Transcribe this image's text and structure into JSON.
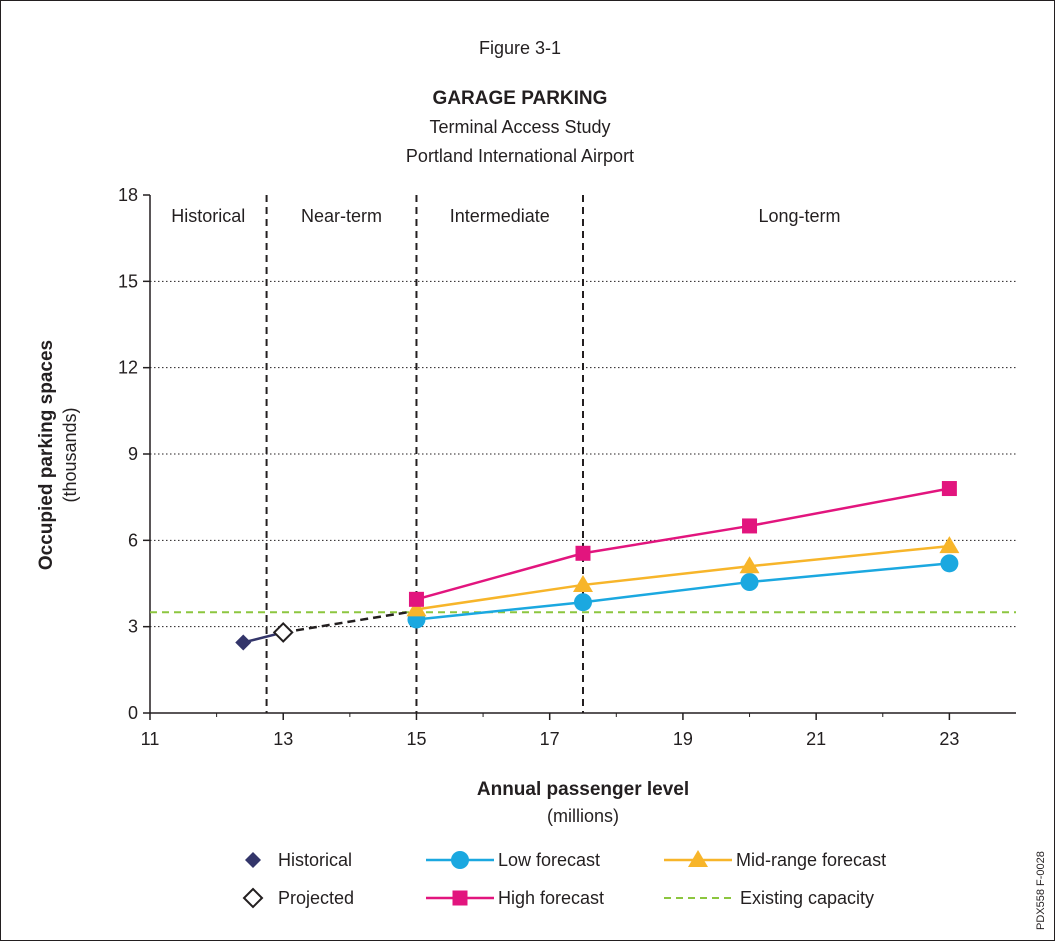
{
  "header": {
    "figure_number": "Figure 3-1",
    "title": "GARAGE PARKING",
    "subtitle_1": "Terminal Access Study",
    "subtitle_2": "Portland International Airport"
  },
  "side_code": "PDX558 F-0028",
  "colors": {
    "historical": "#33356a",
    "low": "#1ba8e0",
    "mid": "#f7b52a",
    "high": "#e2157e",
    "capacity": "#8cc63f",
    "projection": "#231f20",
    "gridline": "#231f20"
  },
  "chart_data": {
    "type": "line",
    "xlabel": "Annual passenger level",
    "xlabel_unit": "(millions)",
    "ylabel": "Occupied parking spaces",
    "ylabel_unit": "(thousands)",
    "xlim": [
      11,
      24
    ],
    "ylim": [
      0,
      18
    ],
    "x_ticks": [
      11,
      13,
      15,
      17,
      19,
      21,
      23
    ],
    "y_ticks": [
      0,
      3,
      6,
      9,
      12,
      15,
      18
    ],
    "grid": "horizontal dotted",
    "periods": [
      {
        "label": "Historical",
        "from": 11,
        "to": 12.75
      },
      {
        "label": "Near-term",
        "from": 12.75,
        "to": 15
      },
      {
        "label": "Intermediate",
        "from": 15,
        "to": 17.5
      },
      {
        "label": "Long-term",
        "from": 17.5,
        "to": 24
      }
    ],
    "period_boundaries": [
      12.75,
      15,
      17.5
    ],
    "series": [
      {
        "name": "Historical",
        "key": "historical",
        "marker": "diamond-filled",
        "x": [
          12.4
        ],
        "y": [
          2.45
        ]
      },
      {
        "name": "Projected",
        "key": "projection",
        "marker": "diamond-open",
        "x": [
          13
        ],
        "y": [
          2.8
        ]
      },
      {
        "name": "Low forecast",
        "key": "low",
        "marker": "circle",
        "x": [
          15,
          17.5,
          20,
          23
        ],
        "y": [
          3.25,
          3.85,
          4.55,
          5.2
        ]
      },
      {
        "name": "Mid-range forecast",
        "key": "mid",
        "marker": "triangle",
        "x": [
          15,
          17.5,
          20,
          23
        ],
        "y": [
          3.6,
          4.45,
          5.1,
          5.8
        ]
      },
      {
        "name": "High forecast",
        "key": "high",
        "marker": "square",
        "x": [
          15,
          17.5,
          20,
          23
        ],
        "y": [
          3.95,
          5.55,
          6.5,
          7.8
        ]
      }
    ],
    "projection_line": {
      "x": [
        13,
        15
      ],
      "y": [
        2.8,
        3.55
      ]
    },
    "existing_capacity": {
      "name": "Existing capacity",
      "y": 3.5
    },
    "legend": {
      "placement": "bottom",
      "items": [
        {
          "label": "Historical",
          "key": "historical",
          "marker": "diamond-filled"
        },
        {
          "label": "Projected",
          "key": "projection",
          "marker": "diamond-open"
        },
        {
          "label": "Low forecast",
          "key": "low",
          "marker": "circle"
        },
        {
          "label": "High forecast",
          "key": "high",
          "marker": "square"
        },
        {
          "label": "Mid-range forecast",
          "key": "mid",
          "marker": "triangle"
        },
        {
          "label": "Existing capacity",
          "key": "capacity",
          "marker": "dashed"
        }
      ]
    }
  }
}
